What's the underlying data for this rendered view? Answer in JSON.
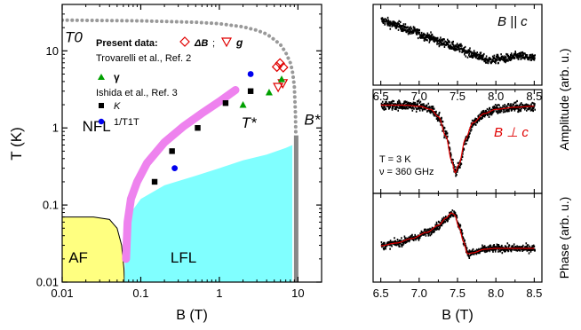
{
  "chart_data": [
    {
      "type": "scatter",
      "id": "phase-diagram",
      "xlabel": "B (T)",
      "ylabel": "T (K)",
      "xscale": "log",
      "yscale": "log",
      "xlim": [
        0.01,
        20
      ],
      "ylim": [
        0.01,
        40
      ],
      "xticks": [
        {
          "v": 0.01,
          "t": "0.01"
        },
        {
          "v": 0.1,
          "t": "0.1"
        },
        {
          "v": 1,
          "t": "1"
        },
        {
          "v": 10,
          "t": "10"
        }
      ],
      "yticks": [
        {
          "v": 0.01,
          "t": "0.01"
        },
        {
          "v": 0.1,
          "t": "0.1"
        },
        {
          "v": 1,
          "t": "1"
        },
        {
          "v": 10,
          "t": "10"
        }
      ],
      "regions": [
        {
          "name": "AF",
          "label": "AF",
          "color": "#ffff80",
          "boundary": [
            [
              0.01,
              0.07
            ],
            [
              0.025,
              0.07
            ],
            [
              0.04,
              0.065
            ],
            [
              0.05,
              0.05
            ],
            [
              0.057,
              0.03
            ],
            [
              0.061,
              0.015
            ],
            [
              0.062,
              0.01
            ]
          ],
          "label_at": [
            0.016,
            0.018
          ]
        },
        {
          "name": "LFL",
          "label": "LFL",
          "color": "#80ffff",
          "boundary": [
            [
              0.062,
              0.01
            ],
            [
              0.064,
              0.03
            ],
            [
              0.075,
              0.08
            ],
            [
              0.1,
              0.12
            ],
            [
              0.2,
              0.18
            ],
            [
              0.5,
              0.24
            ],
            [
              1,
              0.3
            ],
            [
              2,
              0.38
            ],
            [
              4,
              0.45
            ],
            [
              7,
              0.55
            ],
            [
              8.5,
              0.6
            ],
            [
              8.5,
              0.01
            ]
          ],
          "label_at": [
            0.35,
            0.018
          ]
        },
        {
          "name": "NFL",
          "label": "NFL",
          "color": "",
          "label_at": [
            0.018,
            0.9
          ]
        }
      ],
      "tstar_band": {
        "label": "T*",
        "color": "#ee82ee",
        "points": [
          [
            0.065,
            0.02
          ],
          [
            0.068,
            0.06
          ],
          [
            0.075,
            0.12
          ],
          [
            0.09,
            0.2
          ],
          [
            0.12,
            0.35
          ],
          [
            0.2,
            0.65
          ],
          [
            0.35,
            1.05
          ],
          [
            0.6,
            1.55
          ],
          [
            1,
            2.2
          ],
          [
            1.6,
            3.1
          ]
        ],
        "label_at": [
          1.9,
          1.0
        ]
      },
      "t0_line": {
        "label": "T0",
        "color": "#999999",
        "points": [
          [
            0.01,
            25
          ],
          [
            0.1,
            24.5
          ],
          [
            0.5,
            23.5
          ],
          [
            1,
            22.5
          ],
          [
            2,
            20.5
          ],
          [
            3,
            18.5
          ],
          [
            4,
            16.5
          ],
          [
            5,
            14
          ],
          [
            6,
            12
          ],
          [
            7,
            9.5
          ],
          [
            8,
            7
          ],
          [
            8.5,
            5.5
          ],
          [
            9,
            3.5
          ],
          [
            9.3,
            1.5
          ],
          [
            9.4,
            0.8
          ]
        ],
        "label_at": [
          0.0108,
          13
        ]
      },
      "bstar_line": {
        "label": "B*",
        "color": "#888888",
        "x": 9.5,
        "y_top": 0.8,
        "label_at": [
          12,
          1.1
        ]
      },
      "series": [
        {
          "name": "ΔB",
          "marker": "diamond-open",
          "color": "#e00000",
          "points": [
            [
              5.4,
              6.2
            ],
            [
              5.9,
              6.9
            ],
            [
              6.5,
              6.1
            ]
          ]
        },
        {
          "name": "g",
          "marker": "triangle-down-open",
          "color": "#e00000",
          "points": [
            [
              5.6,
              3.4
            ],
            [
              6.4,
              3.8
            ]
          ]
        },
        {
          "name": "γ",
          "marker": "triangle-up",
          "color": "#00a000",
          "points": [
            [
              2,
              2.0
            ],
            [
              4.3,
              2.9
            ],
            [
              6.2,
              4.3
            ]
          ]
        },
        {
          "name": "K",
          "marker": "square",
          "color": "#000000",
          "points": [
            [
              0.15,
              0.2
            ],
            [
              0.25,
              0.5
            ],
            [
              0.53,
              1.0
            ],
            [
              1.2,
              2.1
            ],
            [
              2.5,
              3.0
            ]
          ]
        },
        {
          "name": "1/T1T",
          "marker": "circle",
          "color": "#0000ee",
          "points": [
            [
              0.27,
              0.3
            ],
            [
              2.5,
              5.0
            ]
          ]
        }
      ],
      "legend": {
        "placement": "top-center",
        "present_label": "Present data:",
        "dB_label": "ΔB",
        "g_label": "g",
        "trov_label": "Trovarelli et al., Ref. 2",
        "gamma_label": "γ",
        "ishida_label": "Ishida et al., Ref. 3",
        "k_label": "K",
        "t1t_label": "1/T1T"
      }
    },
    {
      "type": "line",
      "id": "amplitude-parallel",
      "annotation": "B || c",
      "xlim": [
        6.4,
        8.6
      ],
      "ylim": [
        0,
        1
      ],
      "xticks": [
        6.5,
        7.0,
        7.5,
        8.0,
        8.5
      ],
      "data_color": "#000000",
      "curve_points": [
        [
          6.5,
          0.8
        ],
        [
          6.7,
          0.74
        ],
        [
          6.9,
          0.67
        ],
        [
          7.1,
          0.6
        ],
        [
          7.3,
          0.53
        ],
        [
          7.5,
          0.46
        ],
        [
          7.7,
          0.38
        ],
        [
          7.9,
          0.31
        ],
        [
          8.1,
          0.33
        ],
        [
          8.3,
          0.36
        ],
        [
          8.5,
          0.33
        ]
      ]
    },
    {
      "type": "line",
      "id": "amplitude-perpendicular",
      "annotation": "B ⊥ c",
      "text_lines": [
        "T = 3 K",
        "ν = 360 GHz"
      ],
      "xlim": [
        6.4,
        8.6
      ],
      "ylim": [
        0,
        1
      ],
      "xticks": [
        6.5,
        7.0,
        7.5,
        8.0,
        8.5
      ],
      "data_color": "#000000",
      "fit_color": "#e00000",
      "curve_points": [
        [
          6.5,
          0.85
        ],
        [
          6.8,
          0.85
        ],
        [
          7.0,
          0.84
        ],
        [
          7.15,
          0.81
        ],
        [
          7.25,
          0.74
        ],
        [
          7.35,
          0.55
        ],
        [
          7.42,
          0.32
        ],
        [
          7.47,
          0.2
        ],
        [
          7.52,
          0.28
        ],
        [
          7.6,
          0.52
        ],
        [
          7.7,
          0.68
        ],
        [
          7.85,
          0.77
        ],
        [
          8.0,
          0.81
        ],
        [
          8.25,
          0.83
        ],
        [
          8.5,
          0.84
        ]
      ]
    },
    {
      "type": "line",
      "id": "phase",
      "xlabel": "B (T)",
      "xlim": [
        6.4,
        8.6
      ],
      "ylim": [
        0,
        1
      ],
      "xticks": [
        6.5,
        7.0,
        7.5,
        8.0,
        8.5
      ],
      "data_color": "#000000",
      "fit_color": "#e00000",
      "curve_points": [
        [
          6.5,
          0.41
        ],
        [
          6.7,
          0.44
        ],
        [
          6.9,
          0.49
        ],
        [
          7.1,
          0.56
        ],
        [
          7.25,
          0.64
        ],
        [
          7.35,
          0.72
        ],
        [
          7.42,
          0.78
        ],
        [
          7.46,
          0.76
        ],
        [
          7.52,
          0.62
        ],
        [
          7.58,
          0.45
        ],
        [
          7.63,
          0.32
        ],
        [
          7.7,
          0.33
        ],
        [
          7.85,
          0.37
        ],
        [
          8.0,
          0.38
        ],
        [
          8.2,
          0.38
        ],
        [
          8.5,
          0.38
        ]
      ]
    }
  ],
  "right_axes": {
    "amplitude_label": "Amplitude (arb. u.)",
    "phase_label": "Phase (arb. u.)",
    "xlabel": "B (T)"
  }
}
